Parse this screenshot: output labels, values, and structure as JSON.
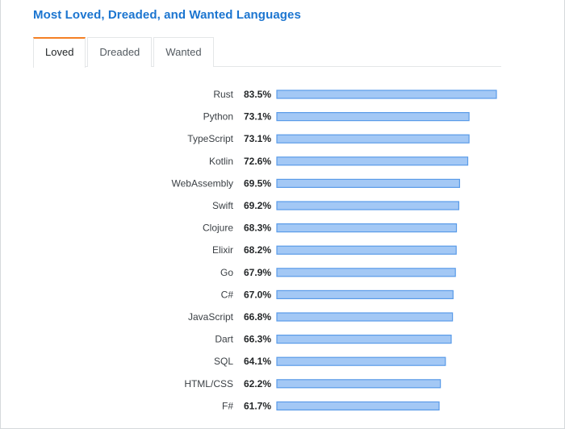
{
  "title": "Most Loved, Dreaded, and Wanted Languages",
  "tabs": [
    {
      "label": "Loved",
      "active": true
    },
    {
      "label": "Dreaded",
      "active": false
    },
    {
      "label": "Wanted",
      "active": false
    }
  ],
  "colors": {
    "title": "#1b75d0",
    "active_tab_accent": "#f48024",
    "bar_fill": "#a3c8f5",
    "bar_stroke": "#5a9be8"
  },
  "chart_data": {
    "type": "bar",
    "orientation": "horizontal",
    "categories": [
      "Rust",
      "Python",
      "TypeScript",
      "Kotlin",
      "WebAssembly",
      "Swift",
      "Clojure",
      "Elixir",
      "Go",
      "C#",
      "JavaScript",
      "Dart",
      "SQL",
      "HTML/CSS",
      "F#"
    ],
    "values": [
      83.5,
      73.1,
      73.1,
      72.6,
      69.5,
      69.2,
      68.3,
      68.2,
      67.9,
      67.0,
      66.8,
      66.3,
      64.1,
      62.2,
      61.7
    ],
    "value_labels": [
      "83.5%",
      "73.1%",
      "73.1%",
      "72.6%",
      "69.5%",
      "69.2%",
      "68.3%",
      "68.2%",
      "67.9%",
      "67.0%",
      "66.8%",
      "66.3%",
      "64.1%",
      "62.2%",
      "61.7%"
    ],
    "grid": false,
    "legend": "none"
  }
}
